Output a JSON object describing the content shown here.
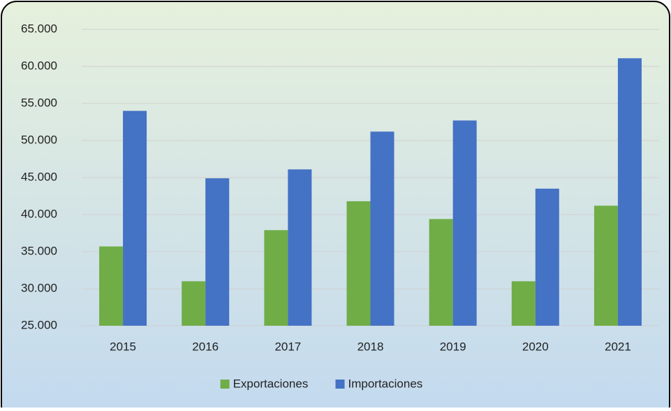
{
  "chart_data": {
    "type": "bar",
    "categories": [
      "2015",
      "2016",
      "2017",
      "2018",
      "2019",
      "2020",
      "2021"
    ],
    "series": [
      {
        "name": "Exportaciones",
        "color": "#70ad47",
        "values": [
          35700,
          31000,
          37900,
          41800,
          39400,
          31000,
          41200
        ]
      },
      {
        "name": "Importaciones",
        "color": "#4472c4",
        "values": [
          54000,
          44900,
          46100,
          51200,
          52700,
          43500,
          61100
        ]
      }
    ],
    "ylim": [
      25000,
      65000
    ],
    "yticks": [
      {
        "value": 25000,
        "label": "25.000"
      },
      {
        "value": 30000,
        "label": "30.000"
      },
      {
        "value": 35000,
        "label": "35.000"
      },
      {
        "value": 40000,
        "label": "40.000"
      },
      {
        "value": 45000,
        "label": "45.000"
      },
      {
        "value": 50000,
        "label": "50.000"
      },
      {
        "value": 55000,
        "label": "55.000"
      },
      {
        "value": 60000,
        "label": "60.000"
      },
      {
        "value": 65000,
        "label": "65.000"
      }
    ],
    "grid": true,
    "legend": "bottom"
  }
}
